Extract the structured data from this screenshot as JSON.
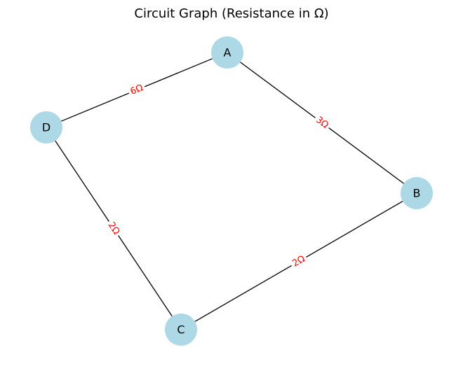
{
  "title": "Circuit Graph (Resistance in Ω)",
  "colors": {
    "node_fill": "#add8e6",
    "edge_stroke": "#000000",
    "edge_label": "#ff0000",
    "background": "#ffffff"
  },
  "nodes": [
    {
      "id": "A",
      "label": "A"
    },
    {
      "id": "B",
      "label": "B"
    },
    {
      "id": "C",
      "label": "C"
    },
    {
      "id": "D",
      "label": "D"
    }
  ],
  "edges": [
    {
      "from": "A",
      "to": "D",
      "label": "6Ω"
    },
    {
      "from": "A",
      "to": "B",
      "label": "3Ω"
    },
    {
      "from": "D",
      "to": "C",
      "label": "2Ω"
    },
    {
      "from": "B",
      "to": "C",
      "label": "2Ω"
    }
  ]
}
